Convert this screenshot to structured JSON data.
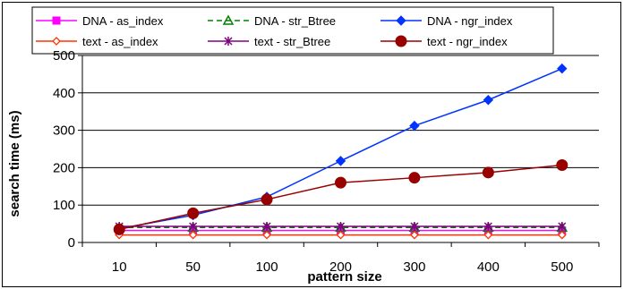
{
  "chart_data": {
    "type": "line",
    "title": "",
    "xlabel": "pattern size",
    "ylabel": "search time (ms)",
    "categories": [
      "10",
      "50",
      "100",
      "200",
      "300",
      "400",
      "500"
    ],
    "ylim": [
      0,
      500
    ],
    "yticks": [
      0,
      100,
      200,
      300,
      400,
      500
    ],
    "grid": true,
    "legend_position": "top",
    "series": [
      {
        "name": "DNA - as_index",
        "color": "#ff00ff",
        "marker": "square",
        "dashed": false,
        "values": [
          32,
          32,
          32,
          32,
          32,
          32,
          32
        ]
      },
      {
        "name": "DNA - str_Btree",
        "color": "#008000",
        "marker": "triangle",
        "dashed": true,
        "values": [
          40,
          40,
          40,
          40,
          40,
          40,
          40
        ]
      },
      {
        "name": "DNA - ngr_index",
        "color": "#0033ff",
        "marker": "diamond",
        "dashed": false,
        "values": [
          37,
          73,
          122,
          218,
          312,
          381,
          465
        ]
      },
      {
        "name": "text - as_index",
        "color": "#ff3300",
        "marker": "diamond-open",
        "dashed": false,
        "values": [
          20,
          20,
          20,
          20,
          20,
          20,
          20
        ]
      },
      {
        "name": "text - str_Btree",
        "color": "#800080",
        "marker": "star",
        "dashed": false,
        "values": [
          43,
          43,
          43,
          43,
          43,
          43,
          43
        ]
      },
      {
        "name": "text - ngr_index",
        "color": "#990000",
        "marker": "circle",
        "dashed": false,
        "values": [
          35,
          78,
          115,
          160,
          173,
          187,
          207
        ]
      }
    ]
  }
}
